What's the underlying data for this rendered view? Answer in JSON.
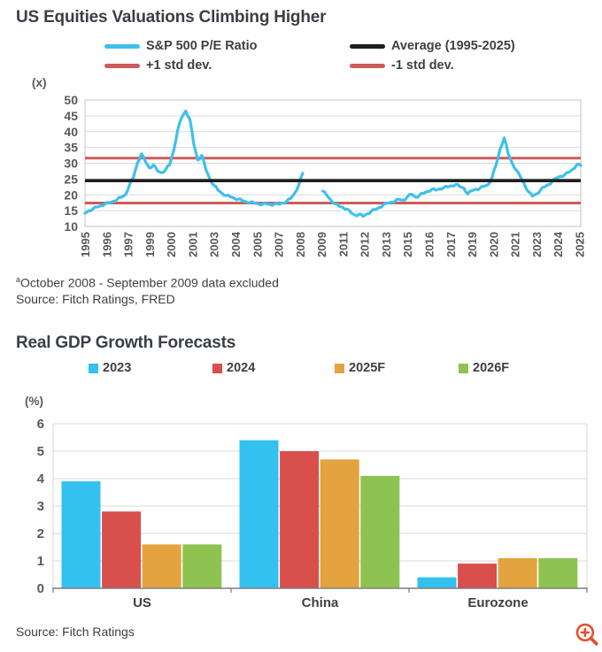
{
  "chart_data": [
    {
      "type": "line",
      "title": "US Equities Valuations Climbing Higher",
      "y_unit_label": "(x)",
      "ylim": [
        10,
        50
      ],
      "yticks": [
        10,
        15,
        20,
        25,
        30,
        35,
        40,
        45,
        50
      ],
      "xtick_labels": [
        "1995",
        "1996",
        "1997",
        "1999",
        "2000",
        "2001",
        "2003",
        "2004",
        "2005",
        "2007",
        "2008",
        "2009",
        "2011",
        "2012",
        "2013",
        "2015",
        "2016",
        "2017",
        "2019",
        "2020",
        "2021",
        "2023",
        "2024",
        "2025"
      ],
      "x_range": "Jan 1995 - Oct 2025",
      "grid": "horizontal",
      "legend_position": "top",
      "series": [
        {
          "name": "S&P 500 P/E Ratio",
          "color": "#3fc0ec",
          "style": "line",
          "frequency": "quarterly",
          "start_year": 1995,
          "values": [
            14.2,
            15.0,
            15.6,
            16.1,
            16.6,
            17.2,
            17.4,
            18.0,
            18.6,
            19.2,
            20.0,
            23.0,
            25.5,
            30.0,
            33.0,
            30.5,
            28.5,
            29.5,
            27.5,
            27.0,
            28.0,
            29.5,
            34.0,
            40.5,
            44.5,
            46.5,
            44.0,
            36.0,
            31.0,
            32.5,
            28.0,
            25.0,
            23.0,
            21.5,
            20.5,
            19.8,
            19.4,
            19.0,
            18.6,
            18.2,
            17.8,
            17.6,
            17.4,
            17.2,
            17.0,
            17.2,
            16.9,
            17.1,
            17.0,
            17.4,
            17.9,
            18.8,
            20.5,
            23.0,
            26.8,
            null,
            null,
            null,
            null,
            21.2,
            19.8,
            18.4,
            17.2,
            16.4,
            16.0,
            15.5,
            14.3,
            13.6,
            13.9,
            13.2,
            14.0,
            14.8,
            15.3,
            16.0,
            16.8,
            17.3,
            17.7,
            18.1,
            18.5,
            18.3,
            19.4,
            20.2,
            19.3,
            19.9,
            20.5,
            21.1,
            21.7,
            21.5,
            21.9,
            22.3,
            22.5,
            22.9,
            23.3,
            22.6,
            22.1,
            20.3,
            21.3,
            21.8,
            22.1,
            22.7,
            23.2,
            25.5,
            29.5,
            34.5,
            38.0,
            33.0,
            30.0,
            27.8,
            25.8,
            23.4,
            21.0,
            19.6,
            20.3,
            21.5,
            22.5,
            23.3,
            24.3,
            25.3,
            25.9,
            26.3,
            27.1,
            28.1,
            29.5,
            29.3
          ]
        },
        {
          "name": "Average (1995-2025)",
          "color": "#1e1e1e",
          "style": "hline",
          "value": 24.5
        },
        {
          "name": "+1 std dev.",
          "color": "#cd5b5b",
          "style": "hline",
          "value": 31.6
        },
        {
          "name": "-1 std dev.",
          "color": "#cd5b5b",
          "style": "hline",
          "value": 17.4
        }
      ],
      "note_mark": "a",
      "note": "October 2008 - September 2009 data excluded",
      "source": "Source: Fitch Ratings, FRED"
    },
    {
      "type": "bar",
      "title": "Real GDP Growth Forecasts",
      "y_unit_label": "(%)",
      "ylim": [
        0,
        6
      ],
      "yticks": [
        0,
        1,
        2,
        3,
        4,
        5,
        6
      ],
      "categories": [
        "US",
        "China",
        "Eurozone"
      ],
      "grid": "horizontal",
      "legend_position": "top",
      "series": [
        {
          "name": "2023",
          "color": "#33c1f0",
          "values": [
            3.9,
            5.4,
            0.4
          ]
        },
        {
          "name": "2024",
          "color": "#d94f4b",
          "values": [
            2.8,
            5.0,
            0.9
          ]
        },
        {
          "name": "2025F",
          "color": "#e3a33f",
          "values": [
            1.6,
            4.7,
            1.1
          ]
        },
        {
          "name": "2026F",
          "color": "#8ec351",
          "values": [
            1.6,
            4.1,
            1.1
          ]
        }
      ],
      "source": "Source: Fitch Ratings"
    }
  ],
  "zoom_button": {
    "icon": "magnifier-plus",
    "color": "#e2502f"
  }
}
